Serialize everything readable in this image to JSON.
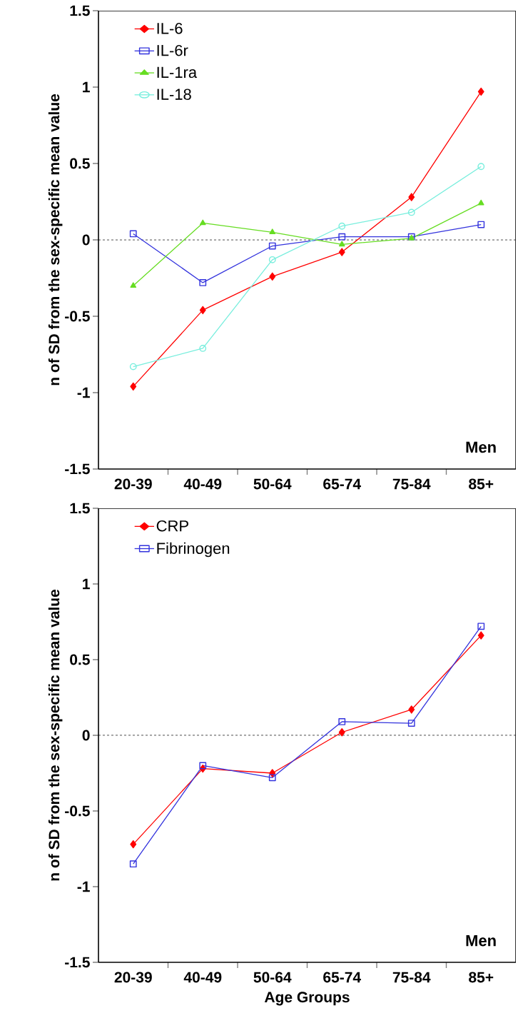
{
  "chart_data": [
    {
      "type": "line",
      "categories": [
        "20-39",
        "40-49",
        "50-64",
        "65-74",
        "75-84",
        "85+"
      ],
      "ylabel": "n of SD from the sex-specific mean value",
      "ylim": [
        -1.5,
        1.5
      ],
      "yticks": [
        -1.5,
        -1,
        -0.5,
        0,
        0.5,
        1,
        1.5
      ],
      "annotations": [
        "Men"
      ],
      "ref_lines": [
        {
          "axis": "y",
          "value": 0,
          "line_style": "dashed",
          "color": "#000000"
        }
      ],
      "legend": "top left",
      "series": [
        {
          "name": "IL-6",
          "color": "#ff0000",
          "marker": "diamond",
          "values": [
            -0.96,
            -0.46,
            -0.24,
            -0.08,
            0.28,
            0.97
          ]
        },
        {
          "name": "IL-6r",
          "color": "#3333dd",
          "marker": "square",
          "values": [
            0.04,
            -0.28,
            -0.04,
            0.02,
            0.02,
            0.1
          ]
        },
        {
          "name": "IL-1ra",
          "color": "#66dd22",
          "marker": "triangle",
          "values": [
            -0.3,
            0.11,
            0.05,
            -0.03,
            0.01,
            0.24
          ]
        },
        {
          "name": "IL-18",
          "color": "#77eedd",
          "marker": "circle",
          "values": [
            -0.83,
            -0.71,
            -0.13,
            0.09,
            0.18,
            0.48
          ]
        }
      ]
    },
    {
      "type": "line",
      "categories": [
        "20-39",
        "40-49",
        "50-64",
        "65-74",
        "75-84",
        "85+"
      ],
      "xlabel": "Age Groups",
      "ylabel": "n of SD from the sex-specific mean value",
      "ylim": [
        -1.5,
        1.5
      ],
      "yticks": [
        -1.5,
        -1,
        -0.5,
        0,
        0.5,
        1,
        1.5
      ],
      "annotations": [
        "Men"
      ],
      "ref_lines": [
        {
          "axis": "y",
          "value": 0,
          "line_style": "dashed",
          "color": "#000000"
        }
      ],
      "legend": "top left",
      "series": [
        {
          "name": "CRP",
          "color": "#ff0000",
          "marker": "diamond",
          "values": [
            -0.72,
            -0.22,
            -0.25,
            0.02,
            0.17,
            0.66
          ]
        },
        {
          "name": "Fibrinogen",
          "color": "#3333dd",
          "marker": "square",
          "values": [
            -0.85,
            -0.2,
            -0.28,
            0.09,
            0.08,
            0.72
          ]
        }
      ]
    }
  ]
}
